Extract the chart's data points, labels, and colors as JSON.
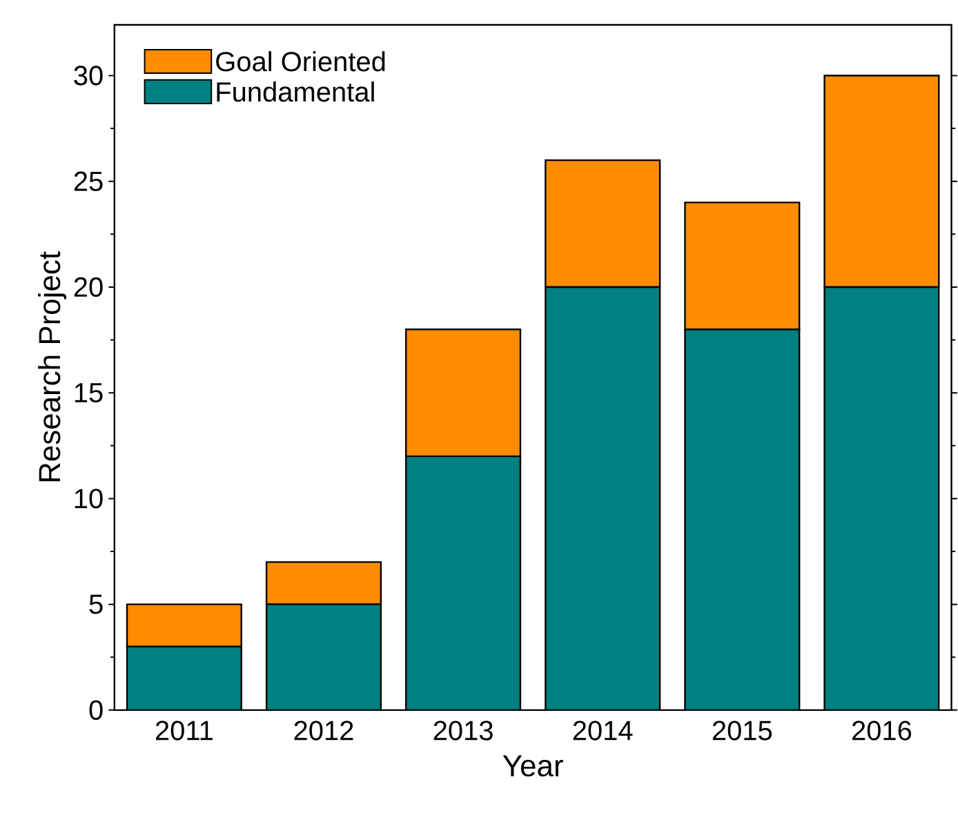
{
  "chart_data": {
    "type": "bar",
    "stacked": true,
    "xlabel": "Year",
    "ylabel": "Research Project",
    "categories": [
      "2011",
      "2012",
      "2013",
      "2014",
      "2015",
      "2016"
    ],
    "series": [
      {
        "name": "Fundamental",
        "color": "#008080",
        "values": [
          3,
          5,
          12,
          20,
          18,
          20
        ]
      },
      {
        "name": "Goal Oriented",
        "color": "#ff8c00",
        "values": [
          2,
          2,
          6,
          6,
          6,
          10
        ]
      }
    ],
    "ylim": [
      0,
      32.4
    ],
    "yticks": [
      0,
      5,
      10,
      15,
      20,
      25,
      30
    ],
    "legend": "top left",
    "grid": false
  }
}
